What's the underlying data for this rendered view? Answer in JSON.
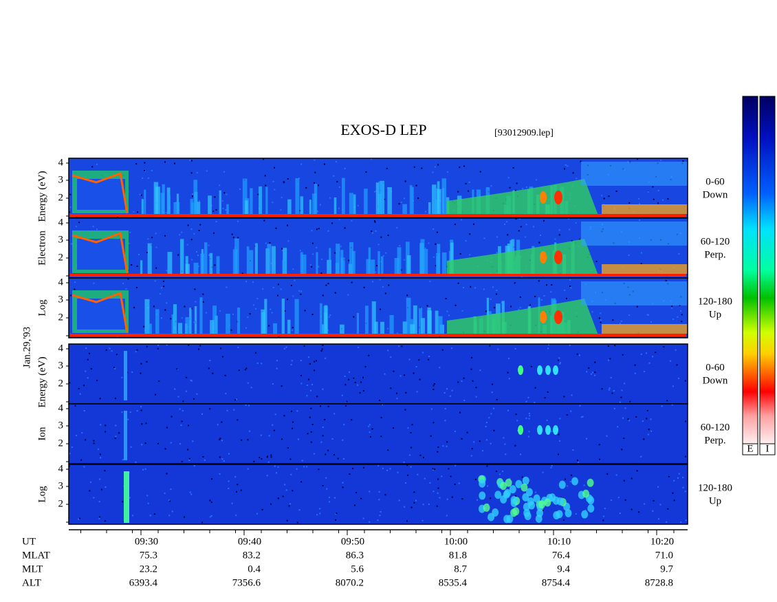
{
  "title": "EXOS-D LEP",
  "file": "[93012909.lep]",
  "date": "Jan.29,'93",
  "electron_label": [
    "Log",
    "Electron",
    "Energy (eV)"
  ],
  "ion_label": [
    "Log",
    "Ion",
    "Energy (eV)"
  ],
  "panel_ticks": [
    "2",
    "3",
    "4"
  ],
  "pitch_labels": [
    [
      "0-60",
      "Down"
    ],
    [
      "60-120",
      "Perp."
    ],
    [
      "120-180",
      "Up"
    ]
  ],
  "colorbar_labels": [
    "E",
    "I"
  ],
  "ephemeris": {
    "rows": [
      [
        "UT",
        "09:30",
        "09:40",
        "09:50",
        "10:00",
        "10:10",
        "10:20"
      ],
      [
        "MLAT",
        "75.3",
        "83.2",
        "86.3",
        "81.8",
        "76.4",
        "71.0"
      ],
      [
        "MLT",
        "23.2",
        "0.4",
        "5.6",
        "8.7",
        "9.4",
        "9.7"
      ],
      [
        "ALT",
        "6393.4",
        "7356.6",
        "8070.2",
        "8535.4",
        "8754.4",
        "8728.8"
      ]
    ]
  }
}
